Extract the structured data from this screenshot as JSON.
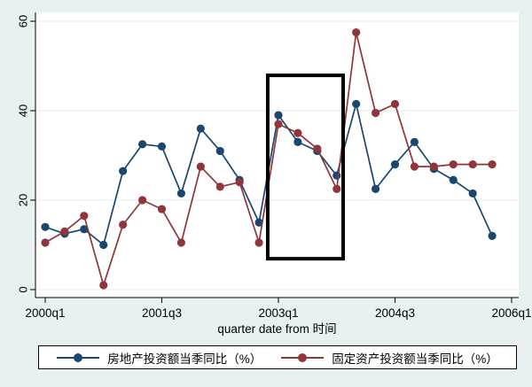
{
  "figure": {
    "background_color": "#e9f0f1",
    "plot_background_color": "#ffffff",
    "grid_color": "#e3ebed",
    "axis_color": "#000000",
    "annotation_color": "#000000"
  },
  "chart_data": {
    "type": "line",
    "title": "",
    "xlabel": "quarter date from 时间",
    "ylabel": "",
    "grid": true,
    "legend_position": "bottom",
    "ylim": [
      -2,
      63
    ],
    "y_ticks": [
      0,
      20,
      40,
      60
    ],
    "y_tick_labels": [
      "0",
      "20",
      "40",
      "60"
    ],
    "x_tick_labels": [
      "2000q1",
      "2001q3",
      "2003q1",
      "2004q3",
      "2006q1"
    ],
    "x_tick_positions": [
      0,
      6,
      12,
      18,
      24
    ],
    "categories": [
      "2000q1",
      "2000q2",
      "2000q3",
      "2000q4",
      "2001q1",
      "2001q2",
      "2001q3",
      "2001q4",
      "2002q1",
      "2002q2",
      "2002q3",
      "2002q4",
      "2003q1",
      "2003q2",
      "2003q3",
      "2003q4",
      "2004q1",
      "2004q2",
      "2004q3",
      "2004q4",
      "2005q1",
      "2005q2",
      "2005q3",
      "2005q4"
    ],
    "series": [
      {
        "name": "房地产投资额当季同比（%）",
        "color": "#1a476f",
        "values": [
          14,
          12.5,
          13.5,
          10,
          26.5,
          32.5,
          32,
          21.5,
          36,
          31,
          24.5,
          15,
          39,
          33,
          31,
          25.5,
          41.5,
          22.5,
          28,
          33,
          27,
          24.5,
          21.5,
          12
        ]
      },
      {
        "name": "固定资产投资额当季同比（%）",
        "color": "#90353b",
        "values": [
          10.5,
          13,
          16.5,
          1,
          14.5,
          20,
          18,
          10.5,
          27.5,
          23,
          24,
          10.5,
          37,
          35,
          31.5,
          22.5,
          57.5,
          39.5,
          41.5,
          27.5,
          27.5,
          28,
          28,
          28
        ]
      }
    ],
    "annotations": [
      {
        "type": "rect",
        "x_from_index": 11.45,
        "x_to_index": 15.33,
        "y_from": 6.9,
        "y_to": 47.9,
        "stroke_width": 4
      }
    ]
  }
}
